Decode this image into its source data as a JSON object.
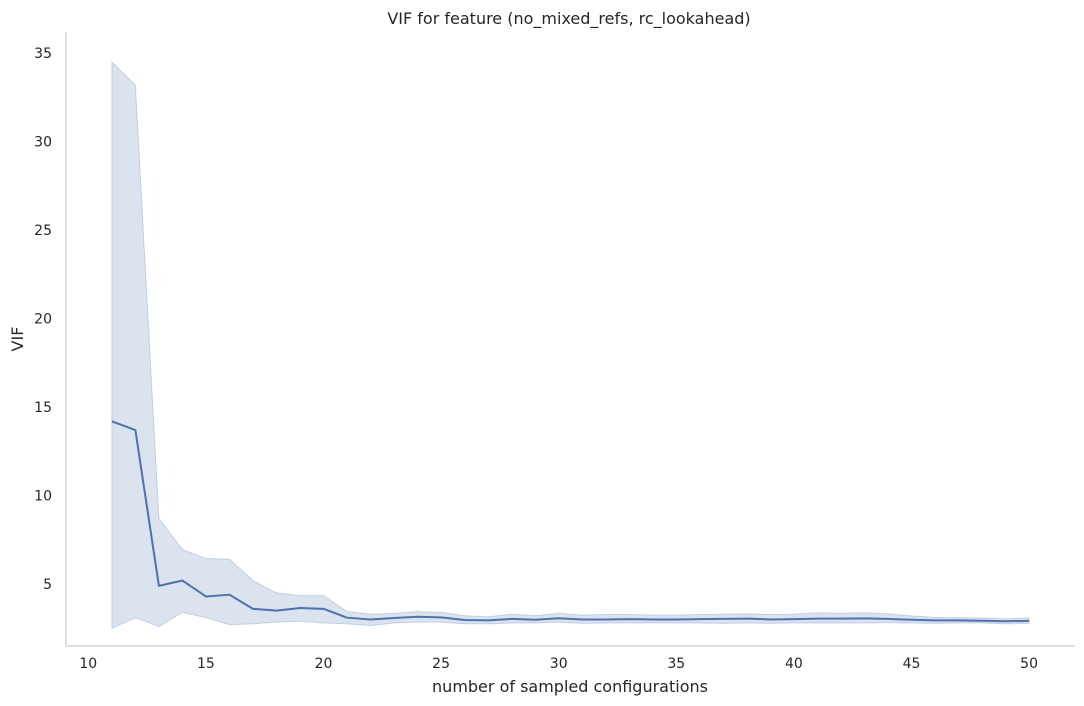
{
  "chart_data": {
    "type": "line",
    "title": "VIF for feature (no_mixed_refs, rc_lookahead)",
    "xlabel": "number of sampled configurations",
    "ylabel": "VIF",
    "xlim": [
      9.05,
      51.95
    ],
    "ylim": [
      1.5,
      36.2
    ],
    "xticks": [
      10,
      15,
      20,
      25,
      30,
      35,
      40,
      45,
      50
    ],
    "yticks": [
      5,
      10,
      15,
      20,
      25,
      30,
      35
    ],
    "grid": false,
    "legend": "none",
    "x": [
      11,
      12,
      13,
      14,
      15,
      16,
      17,
      18,
      19,
      20,
      21,
      22,
      23,
      24,
      25,
      26,
      27,
      28,
      29,
      30,
      31,
      32,
      33,
      34,
      35,
      36,
      37,
      38,
      39,
      40,
      41,
      42,
      43,
      44,
      45,
      46,
      47,
      48,
      49,
      50
    ],
    "series": [
      {
        "values": [
          14.2,
          13.7,
          4.9,
          5.2,
          4.3,
          4.4,
          3.6,
          3.5,
          3.65,
          3.6,
          3.1,
          3.0,
          3.08,
          3.15,
          3.12,
          2.97,
          2.95,
          3.03,
          2.98,
          3.07,
          3.0,
          3.0,
          3.02,
          3.0,
          3.0,
          3.02,
          3.03,
          3.05,
          3.0,
          3.02,
          3.05,
          3.05,
          3.06,
          3.03,
          2.98,
          2.95,
          2.95,
          2.93,
          2.9,
          2.92
        ],
        "lower": [
          2.5,
          3.1,
          2.6,
          3.4,
          3.1,
          2.7,
          2.75,
          2.85,
          2.9,
          2.8,
          2.75,
          2.65,
          2.8,
          2.85,
          2.85,
          2.75,
          2.75,
          2.8,
          2.8,
          2.85,
          2.78,
          2.8,
          2.8,
          2.8,
          2.8,
          2.8,
          2.78,
          2.8,
          2.78,
          2.8,
          2.8,
          2.8,
          2.8,
          2.82,
          2.8,
          2.78,
          2.8,
          2.8,
          2.75,
          2.78
        ],
        "upper": [
          34.5,
          33.2,
          8.7,
          6.95,
          6.45,
          6.4,
          5.2,
          4.5,
          4.35,
          4.35,
          3.45,
          3.3,
          3.35,
          3.45,
          3.4,
          3.22,
          3.15,
          3.3,
          3.22,
          3.35,
          3.25,
          3.28,
          3.28,
          3.25,
          3.25,
          3.28,
          3.3,
          3.32,
          3.28,
          3.3,
          3.38,
          3.35,
          3.38,
          3.32,
          3.2,
          3.12,
          3.1,
          3.08,
          3.05,
          3.08
        ]
      }
    ]
  },
  "colors": {
    "line": "#4c72b0",
    "band": "#4c72b0",
    "axis": "#cccccc",
    "text": "#262626"
  }
}
